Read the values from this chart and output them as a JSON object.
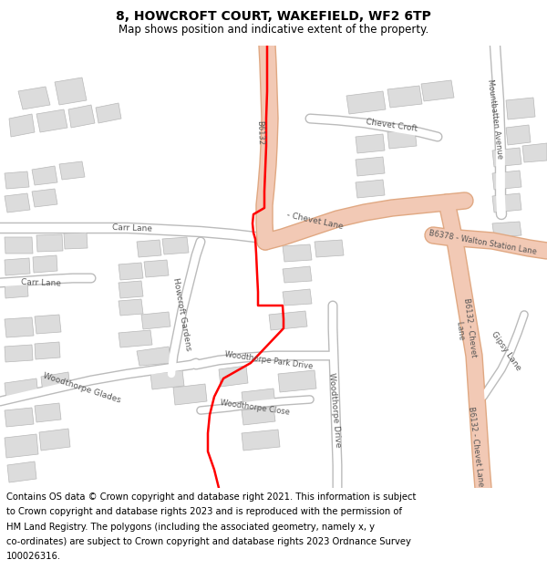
{
  "title_line1": "8, HOWCROFT COURT, WAKEFIELD, WF2 6TP",
  "title_line2": "Map shows position and indicative extent of the property.",
  "footer_lines": [
    "Contains OS data © Crown copyright and database right 2021. This information is subject",
    "to Crown copyright and database rights 2023 and is reproduced with the permission of",
    "HM Land Registry. The polygons (including the associated geometry, namely x, y",
    "co-ordinates) are subject to Crown copyright and database rights 2023 Ordnance Survey",
    "100026316."
  ],
  "map_bg": "#f0efeb",
  "road_major_fill": "#f2c9b5",
  "road_major_edge": "#e0a882",
  "road_minor_fill": "#ffffff",
  "road_minor_edge": "#cccccc",
  "building_fill": "#dcdcdc",
  "building_edge": "#b8b8b8",
  "boundary_color": "#ff0000",
  "boundary_lw": 1.8,
  "title_fs": 10,
  "subtitle_fs": 8.5,
  "footer_fs": 7.2
}
